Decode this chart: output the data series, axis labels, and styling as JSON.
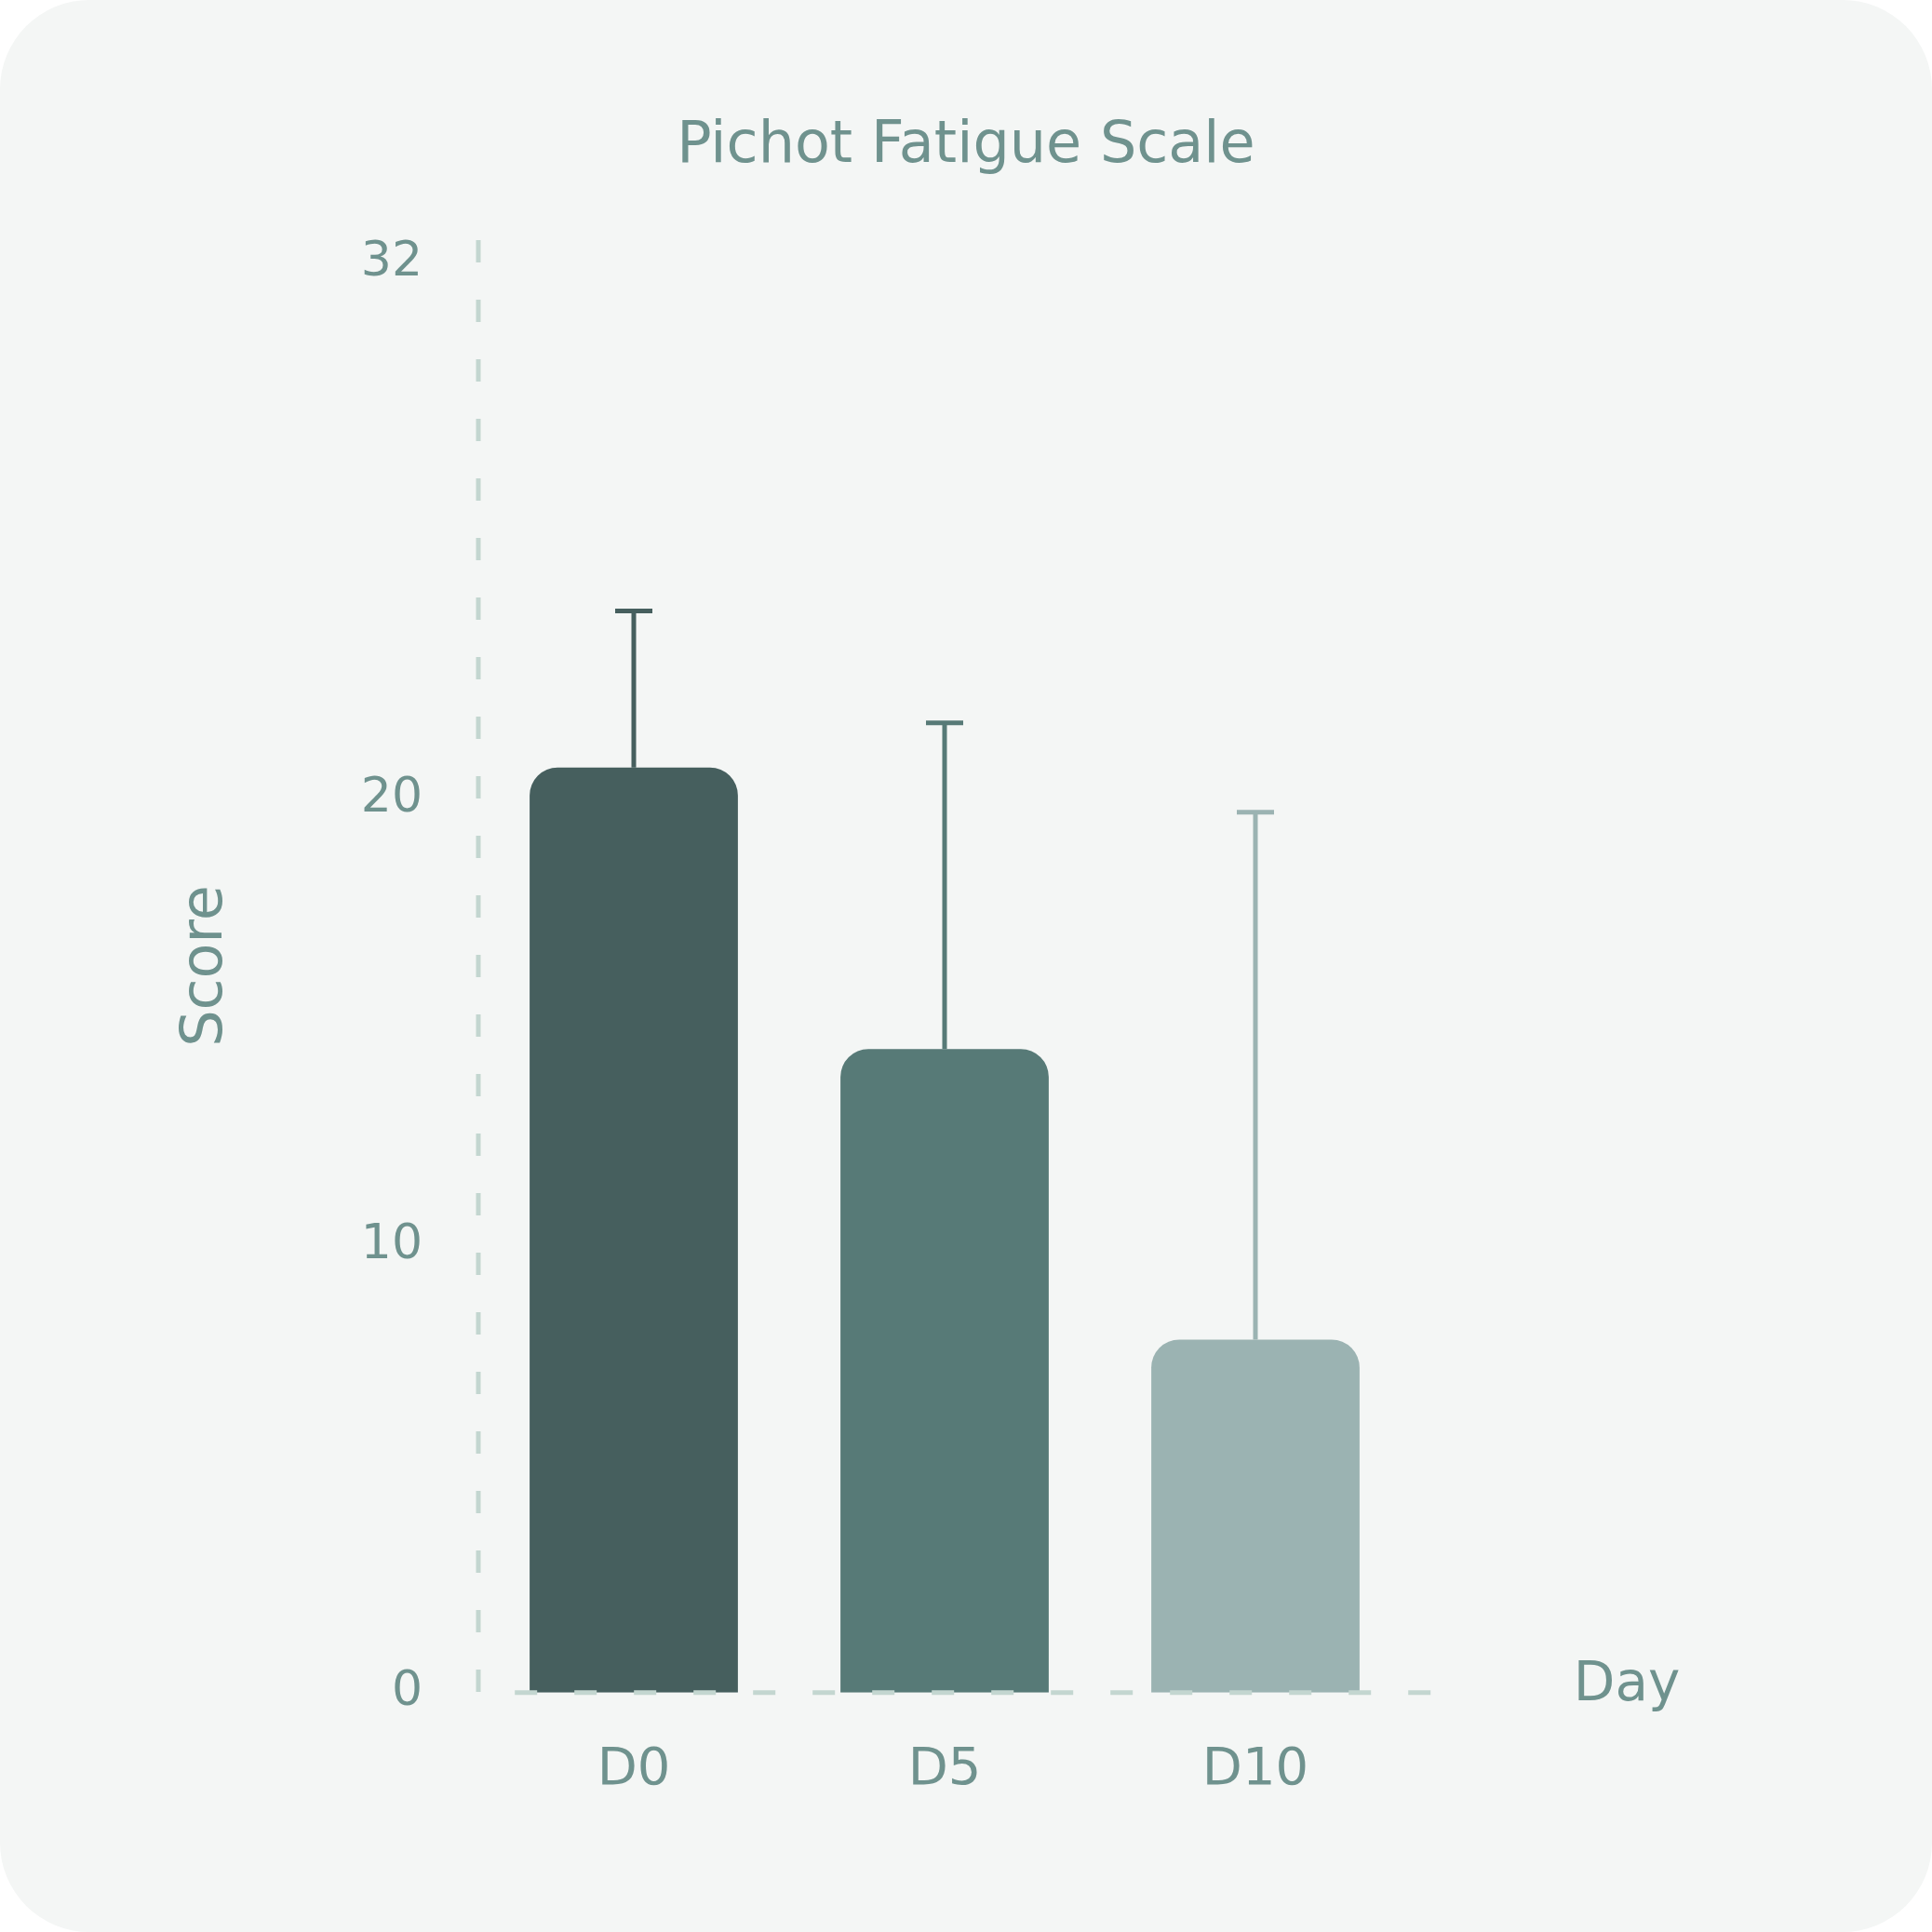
{
  "chart_data": {
    "type": "bar",
    "title": "Pichot Fatigue Scale",
    "xlabel": "Day",
    "ylabel": "Score",
    "categories": [
      "D0",
      "D5",
      "D10"
    ],
    "values": [
      20.7,
      14.4,
      7.9
    ],
    "colors": [
      "#465f5e",
      "#577a77",
      "#9bb3b2"
    ],
    "errors": [
      [
        20.7,
        24.2
      ],
      [
        14.4,
        21.7
      ],
      [
        7.9,
        19.7
      ]
    ],
    "ylim": [
      0,
      32.5
    ],
    "yticks": [
      0,
      10,
      20,
      32
    ],
    "grid": false,
    "legend": false
  }
}
